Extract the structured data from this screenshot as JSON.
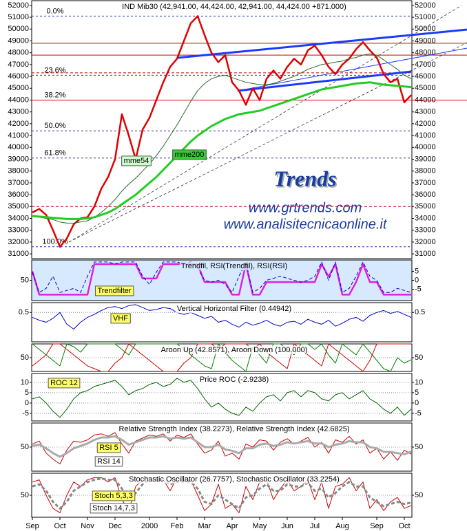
{
  "chart_data": [
    {
      "type": "line",
      "title": "IND Mib30 (42,941.00, 44,424.00, 42,941.00, 44,424.00 +871.000)",
      "ylim": [
        30600,
        52400
      ],
      "yticks": [
        31000,
        32000,
        33000,
        34000,
        35000,
        36000,
        37000,
        38000,
        39000,
        40000,
        41000,
        42000,
        43000,
        44000,
        45000,
        46000,
        47000,
        48000,
        49000,
        50000,
        51000,
        52000
      ],
      "grid": false,
      "fib_levels": [
        {
          "label": "0.0%",
          "value": 51100
        },
        {
          "label": "23.6%",
          "value": 46100
        },
        {
          "label": "38.2%",
          "value": 44000
        },
        {
          "label": "50.0%",
          "value": 41400
        },
        {
          "label": "61.8%",
          "value": 39100
        },
        {
          "label": "100.0%",
          "value": 31600
        }
      ],
      "levels": [
        48800,
        47800,
        44000
      ],
      "dashed_levels": [
        46300,
        35000
      ],
      "watermark_title": "Trends",
      "watermark_lines": [
        "www.grtrends.com",
        "www.analisitecnicaonline.it"
      ],
      "series": [
        {
          "color": "#e00000",
          "width": 2.5,
          "values": [
            34500,
            34800,
            34300,
            33000,
            31600,
            32300,
            33500,
            34000,
            34100,
            35000,
            36500,
            37500,
            39000,
            42800,
            41000,
            39000,
            41500,
            42500,
            44000,
            45500,
            46800,
            47500,
            49000,
            50500,
            51100,
            49500,
            48000,
            47200,
            47800,
            45500,
            44800,
            43600,
            45000,
            44000,
            45800,
            46500,
            45800,
            46800,
            47500,
            47000,
            48200,
            48600,
            47800,
            46800,
            46200,
            47000,
            47500,
            48300,
            48900,
            48200,
            47600,
            46200,
            45500,
            45800,
            43800,
            44424
          ]
        },
        {
          "name": "mme54",
          "color": "#2a6a2a",
          "width": 1,
          "values": [
            34200,
            34100,
            34000,
            33900,
            33700,
            33600,
            33600,
            33700,
            33800,
            34100,
            34500,
            35000,
            35600,
            36300,
            36900,
            37400,
            38000,
            38600,
            39300,
            40100,
            41000,
            41900,
            42900,
            43900,
            44800,
            45400,
            45800,
            46000,
            46100,
            45900,
            45700,
            45500,
            45400,
            45300,
            45300,
            45400,
            45600,
            45800,
            46000,
            46300,
            46600,
            46800,
            47000,
            47100,
            47200,
            47300,
            47500,
            47600,
            47800,
            47900,
            47800,
            47400,
            47000,
            46600,
            46100,
            45800
          ]
        },
        {
          "name": "mme200",
          "color": "#22cc22",
          "width": 3,
          "values": [
            34200,
            34150,
            34100,
            34050,
            34000,
            33950,
            33950,
            33950,
            34000,
            34100,
            34300,
            34500,
            34800,
            35200,
            35600,
            36000,
            36500,
            37000,
            37500,
            38100,
            38700,
            39300,
            39900,
            40500,
            41000,
            41400,
            41800,
            42100,
            42400,
            42600,
            42800,
            42900,
            43000,
            43100,
            43300,
            43500,
            43700,
            43900,
            44100,
            44300,
            44500,
            44700,
            44900,
            45000,
            45100,
            45200,
            45300,
            45400,
            45450,
            45500,
            45400,
            45300,
            45250,
            45200,
            45150,
            45100
          ]
        }
      ]
    },
    {
      "type": "line",
      "title": "Trendfil, RSI(Trendfil), RSI(RSI)",
      "ylim": [
        0,
        100
      ],
      "yticks": [
        50
      ],
      "y2lim": [
        -11.3,
        11.3
      ],
      "y2ticks": [
        5,
        0,
        -5
      ],
      "grid": false,
      "series": [
        {
          "name": "Trendfilter",
          "axis": "y2",
          "color": "#e020e0",
          "width": 2.5,
          "values": [
            5,
            -8,
            -8,
            -8,
            -8,
            -8,
            -8,
            -8,
            -8,
            9,
            9,
            9,
            9,
            9,
            9,
            9,
            1,
            1,
            1,
            9,
            9,
            9,
            9,
            9,
            9,
            -1,
            -1,
            -1,
            -1,
            -8,
            -8,
            9,
            -8,
            -8,
            -1,
            -1,
            -1,
            -1,
            -1,
            -1,
            -1,
            -1,
            9,
            2,
            9,
            -8,
            -8,
            -1,
            9,
            -1,
            -1,
            -8,
            -8,
            -8,
            -8,
            -8
          ]
        },
        {
          "color": "#0000cc",
          "width": 1,
          "dash": true,
          "values": [
            70,
            20,
            30,
            60,
            20,
            25,
            30,
            20,
            60,
            95,
            95,
            95,
            90,
            95,
            95,
            95,
            60,
            40,
            70,
            95,
            95,
            95,
            90,
            95,
            80,
            50,
            45,
            50,
            40,
            20,
            60,
            95,
            20,
            30,
            50,
            55,
            60,
            55,
            50,
            45,
            50,
            60,
            95,
            50,
            95,
            20,
            30,
            60,
            95,
            60,
            50,
            20,
            20,
            30,
            25,
            20
          ]
        }
      ]
    },
    {
      "type": "line",
      "title": "Vertical Horizontal Filter (0.44942)",
      "ylim": [
        0.2,
        0.6
      ],
      "yticks": [
        0.5
      ],
      "grid": true,
      "series": [
        {
          "name": "VHF",
          "color": "#0000cc",
          "width": 1,
          "values": [
            0.45,
            0.42,
            0.4,
            0.44,
            0.5,
            0.38,
            0.33,
            0.4,
            0.45,
            0.48,
            0.52,
            0.55,
            0.56,
            0.54,
            0.57,
            0.58,
            0.55,
            0.52,
            0.53,
            0.55,
            0.54,
            0.5,
            0.48,
            0.5,
            0.47,
            0.44,
            0.46,
            0.4,
            0.42,
            0.38,
            0.35,
            0.4,
            0.37,
            0.39,
            0.42,
            0.38,
            0.36,
            0.4,
            0.41,
            0.38,
            0.43,
            0.4,
            0.38,
            0.42,
            0.36,
            0.39,
            0.43,
            0.45,
            0.41,
            0.47,
            0.5,
            0.52,
            0.49,
            0.51,
            0.48,
            0.44942
          ]
        }
      ]
    },
    {
      "type": "line",
      "title": "Aroon Up (42.8571), Aroon Down (100.000)",
      "ylim": [
        0,
        100
      ],
      "yticks": [
        50
      ],
      "grid": true,
      "series": [
        {
          "color": "#008000",
          "width": 1,
          "values": [
            100,
            80,
            60,
            40,
            20,
            100,
            90,
            70,
            100,
            100,
            100,
            100,
            100,
            80,
            60,
            100,
            100,
            100,
            100,
            100,
            100,
            100,
            80,
            60,
            40,
            20,
            10,
            100,
            70,
            40,
            20,
            0,
            90,
            60,
            30,
            100,
            100,
            80,
            60,
            100,
            100,
            80,
            100,
            60,
            30,
            100,
            80,
            60,
            100,
            70,
            40,
            10,
            0,
            50,
            30,
            42.8571
          ]
        },
        {
          "color": "#cc0000",
          "width": 1,
          "values": [
            20,
            40,
            60,
            100,
            100,
            80,
            60,
            40,
            20,
            10,
            0,
            0,
            30,
            50,
            100,
            80,
            60,
            40,
            20,
            0,
            0,
            0,
            30,
            50,
            100,
            100,
            100,
            80,
            100,
            100,
            100,
            100,
            80,
            100,
            70,
            50,
            30,
            10,
            100,
            80,
            60,
            40,
            20,
            100,
            80,
            60,
            40,
            20,
            0,
            40,
            100,
            100,
            100,
            100,
            100,
            100
          ]
        }
      ]
    },
    {
      "type": "line",
      "title": "Price ROC (-2.9238)",
      "ylim": [
        -8.7,
        14.3
      ],
      "yticks": [
        10,
        5,
        0,
        -5
      ],
      "grid": true,
      "series": [
        {
          "name": "ROC 12",
          "color": "#006600",
          "width": 1,
          "values": [
            2,
            3,
            0,
            -4,
            -7,
            -3,
            2,
            5,
            6,
            8,
            9,
            10,
            11,
            8,
            4,
            6,
            7,
            9,
            10,
            8,
            9,
            12,
            10,
            11,
            7,
            2,
            -2,
            0,
            -3,
            -5,
            -6,
            -2,
            -4,
            0,
            3,
            4,
            1,
            5,
            6,
            3,
            6,
            5,
            2,
            1,
            4,
            5,
            2,
            4,
            6,
            2,
            0,
            -3,
            -5,
            -2,
            -6,
            -2.9238
          ]
        }
      ]
    },
    {
      "type": "line",
      "title": "Relative Strength Index (38.2273), Relative Strength Index (42.6825)",
      "ylim": [
        10,
        90
      ],
      "yticks": [
        50
      ],
      "grid": true,
      "series": [
        {
          "name": "RSI 5",
          "color": "#cc0000",
          "width": 1,
          "values": [
            55,
            60,
            40,
            30,
            22,
            45,
            60,
            58,
            62,
            70,
            72,
            68,
            74,
            55,
            40,
            60,
            65,
            70,
            68,
            72,
            60,
            70,
            66,
            72,
            55,
            40,
            45,
            60,
            35,
            40,
            30,
            55,
            50,
            62,
            60,
            45,
            58,
            64,
            55,
            60,
            66,
            50,
            58,
            40,
            62,
            58,
            68,
            55,
            62,
            40,
            48,
            30,
            42,
            28,
            45,
            38.2273
          ]
        },
        {
          "name": "RSI 14",
          "color": "#aaaaaa",
          "width": 3,
          "values": [
            52,
            54,
            48,
            40,
            34,
            40,
            48,
            52,
            56,
            62,
            66,
            66,
            68,
            62,
            54,
            58,
            62,
            66,
            66,
            68,
            64,
            66,
            64,
            66,
            58,
            50,
            50,
            54,
            46,
            44,
            40,
            48,
            48,
            54,
            56,
            52,
            54,
            58,
            56,
            58,
            60,
            56,
            56,
            50,
            54,
            56,
            60,
            58,
            58,
            50,
            48,
            42,
            42,
            40,
            38,
            42.6825
          ]
        }
      ]
    },
    {
      "type": "line",
      "title": "Stochastic Oscillator (26.7757), Stochastic Oscillator (33.2254)",
      "ylim": [
        0,
        100
      ],
      "yticks": [
        50
      ],
      "grid": true,
      "categories": [
        "Sep",
        null,
        null,
        null,
        "Oct",
        null,
        null,
        null,
        "Nov",
        null,
        null,
        null,
        "Dec",
        null,
        null,
        null,
        null,
        "2000",
        null,
        null,
        null,
        "Feb",
        null,
        null,
        null,
        "Mar",
        null,
        null,
        null,
        "Apr",
        null,
        null,
        null,
        "May",
        null,
        null,
        null,
        "Jun",
        null,
        null,
        null,
        "Jul",
        null,
        null,
        null,
        "Aug",
        null,
        null,
        null,
        null,
        "Sep",
        null,
        null,
        null,
        "Oct",
        null
      ],
      "series": [
        {
          "name": "Stoch 5,3,3",
          "color": "#cc0000",
          "width": 1,
          "values": [
            80,
            85,
            50,
            20,
            10,
            50,
            80,
            70,
            85,
            90,
            90,
            80,
            90,
            40,
            15,
            70,
            85,
            90,
            80,
            85,
            60,
            90,
            80,
            85,
            50,
            15,
            30,
            75,
            20,
            30,
            10,
            70,
            40,
            80,
            85,
            40,
            65,
            85,
            60,
            70,
            85,
            40,
            80,
            20,
            70,
            75,
            90,
            60,
            80,
            20,
            40,
            15,
            35,
            45,
            20,
            26.7757
          ]
        },
        {
          "name": "Stoch 14,7,3",
          "color": "#888888",
          "width": 3,
          "dash": true,
          "values": [
            70,
            75,
            60,
            35,
            20,
            35,
            60,
            70,
            80,
            85,
            88,
            85,
            85,
            65,
            40,
            55,
            75,
            85,
            85,
            85,
            75,
            80,
            80,
            80,
            65,
            35,
            30,
            50,
            40,
            30,
            20,
            45,
            50,
            65,
            75,
            60,
            60,
            75,
            70,
            70,
            78,
            60,
            65,
            45,
            55,
            70,
            80,
            70,
            70,
            45,
            35,
            25,
            30,
            35,
            30,
            33.2254
          ]
        }
      ]
    }
  ]
}
